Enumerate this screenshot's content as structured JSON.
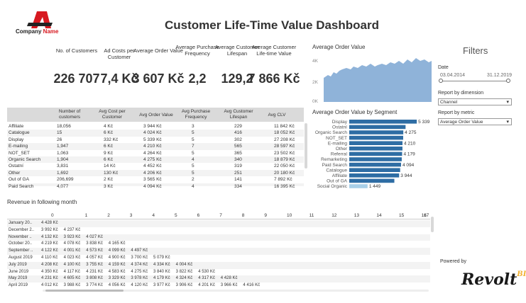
{
  "company": {
    "name_prefix": "Company ",
    "name_highlight": "Name"
  },
  "title": "Customer Life-Time Value Dashboard",
  "kpis": [
    {
      "label": "No. of Customers",
      "value": "226 707"
    },
    {
      "label": "Ad Costs per Customer",
      "value": "7,4 Kč"
    },
    {
      "label": "Average Order Value",
      "value": "3 607 Kč"
    },
    {
      "label": "Average Purchase Frequency",
      "value": "2,2"
    },
    {
      "label": "Average Customer Lifespan",
      "value": "129,2"
    },
    {
      "label": "Average Customer Life-time Value",
      "value": "7 866 Kč"
    }
  ],
  "area_chart": {
    "title": "Average Order Value",
    "y_ticks": [
      "4K",
      "2K",
      "0K"
    ]
  },
  "filters": {
    "title": "Filters",
    "date_label": "Date",
    "date_from": "03.04.2014",
    "date_to": "31.12.2019",
    "dimension_label": "Report by dimension",
    "dimension_value": "Channel",
    "metric_label": "Report by metric",
    "metric_value": "Average Order Value"
  },
  "segment_table": {
    "headers": [
      "Number of customers",
      "Avg Cost per Customer",
      "Avg Order Value",
      "Avg Purchase Frequency",
      "Avg Customer Lifespan",
      "Avg CLV"
    ],
    "rows": [
      [
        "Affiliate",
        "18,056",
        "4 Kč",
        "3 944 Kč",
        "3",
        "229",
        "11 842 Kč"
      ],
      [
        "Catalogue",
        "15",
        "6 Kč",
        "4 024 Kč",
        "5",
        "416",
        "18 052 Kč"
      ],
      [
        "Display",
        "26",
        "332 Kč",
        "5 339 Kč",
        "5",
        "302",
        "27 208 Kč"
      ],
      [
        "E-mailing",
        "1,947",
        "6 Kč",
        "4 210 Kč",
        "7",
        "565",
        "28 597 Kč"
      ],
      [
        "NOT_SET",
        "1,063",
        "9 Kč",
        "4 264 Kč",
        "5",
        "365",
        "23 502 Kč"
      ],
      [
        "Organic Search",
        "1,904",
        "6 Kč",
        "4 275 Kč",
        "4",
        "340",
        "18 879 Kč"
      ],
      [
        "Ostatní",
        "3,831",
        "14 Kč",
        "4 452 Kč",
        "5",
        "319",
        "22 050 Kč"
      ],
      [
        "Other",
        "1,692",
        "130 Kč",
        "4 206 Kč",
        "5",
        "251",
        "20 180 Kč"
      ],
      [
        "Out of GA",
        "206,699",
        "2 Kč",
        "3 565 Kč",
        "2",
        "141",
        "7 892 Kč"
      ],
      [
        "Paid Search",
        "4,077",
        "3 Kč",
        "4 094 Kč",
        "4",
        "334",
        "16 395 Kč"
      ]
    ]
  },
  "chart_data": {
    "type": "bar",
    "title": "Average Order Value by Segment",
    "categories": [
      "Display",
      "Ostatní",
      "Organic Search",
      "NOT_SET",
      "E-mailing",
      "Other",
      "Referral",
      "Remarketing",
      "Paid Search",
      "Catalogue",
      "Affiliate",
      "Out of GA",
      "Social Organic"
    ],
    "values": [
      5339,
      4452,
      4275,
      4264,
      4210,
      4206,
      4179,
      4150,
      4094,
      4024,
      3944,
      3565,
      1449
    ],
    "labels": [
      "5 339",
      "",
      "4 275",
      "",
      "4 210",
      "",
      "4 179",
      "",
      "4 094",
      "",
      "3 944",
      "",
      "1 449"
    ],
    "xlim": [
      0,
      5500
    ],
    "colors": {
      "bar": "#2e6da4",
      "highlight": "#a8cfe8"
    }
  },
  "revenue": {
    "title": "Revenue in following month",
    "columns": [
      "0",
      "1",
      "2",
      "3",
      "4",
      "5",
      "6",
      "7",
      "8",
      "9",
      "10",
      "11",
      "12",
      "13",
      "14",
      "15",
      "16",
      "17"
    ],
    "rows": [
      {
        "label": "January 20..",
        "values": [
          "4 428 Kč"
        ]
      },
      {
        "label": "December 2..",
        "values": [
          "3 992 Kč",
          "4 237 Kč"
        ]
      },
      {
        "label": "November ..",
        "values": [
          "4 132 Kč",
          "3 923 Kč",
          "4 027 Kč"
        ]
      },
      {
        "label": "October 20..",
        "values": [
          "4 219 Kč",
          "4 078 Kč",
          "3 838 Kč",
          "4 165 Kč"
        ]
      },
      {
        "label": "September ..",
        "values": [
          "4 122 Kč",
          "4 001 Kč",
          "4 573 Kč",
          "4 099 Kč",
          "4 497 Kč"
        ]
      },
      {
        "label": "August 2019",
        "values": [
          "4 110 Kč",
          "4 023 Kč",
          "4 057 Kč",
          "4 900 Kč",
          "3 700 Kč",
          "5 079 Kč"
        ]
      },
      {
        "label": "July 2019",
        "values": [
          "4 208 Kč",
          "4 100 Kč",
          "3 755 Kč",
          "4 159 Kč",
          "4 374 Kč",
          "4 334 Kč",
          "4 004 Kč"
        ]
      },
      {
        "label": "June 2019",
        "values": [
          "4 350 Kč",
          "4 117 Kč",
          "4 231 Kč",
          "4 583 Kč",
          "4 275 Kč",
          "3 840 Kč",
          "3 822 Kč",
          "4 530 Kč"
        ]
      },
      {
        "label": "May 2019",
        "values": [
          "4 231 Kč",
          "4 605 Kč",
          "3 808 Kč",
          "3 329 Kč",
          "3 978 Kč",
          "4 179 Kč",
          "4 324 Kč",
          "4 317 Kč",
          "4 428 Kč"
        ]
      },
      {
        "label": "April 2019",
        "values": [
          "4 012 Kč",
          "3 988 Kč",
          "3 774 Kč",
          "4 056 Kč",
          "4 120 Kč",
          "3 977 Kč",
          "3 906 Kč",
          "4 201 Kč",
          "3 966 Kč",
          "4 416 Kč"
        ]
      }
    ]
  },
  "powered_by": {
    "label": "Powered by",
    "brand": "Revolt",
    "brand_mark": "BI"
  },
  "colors": {
    "accent": "#d71920",
    "bar": "#2e6da4",
    "area": "#8fb3d9"
  }
}
